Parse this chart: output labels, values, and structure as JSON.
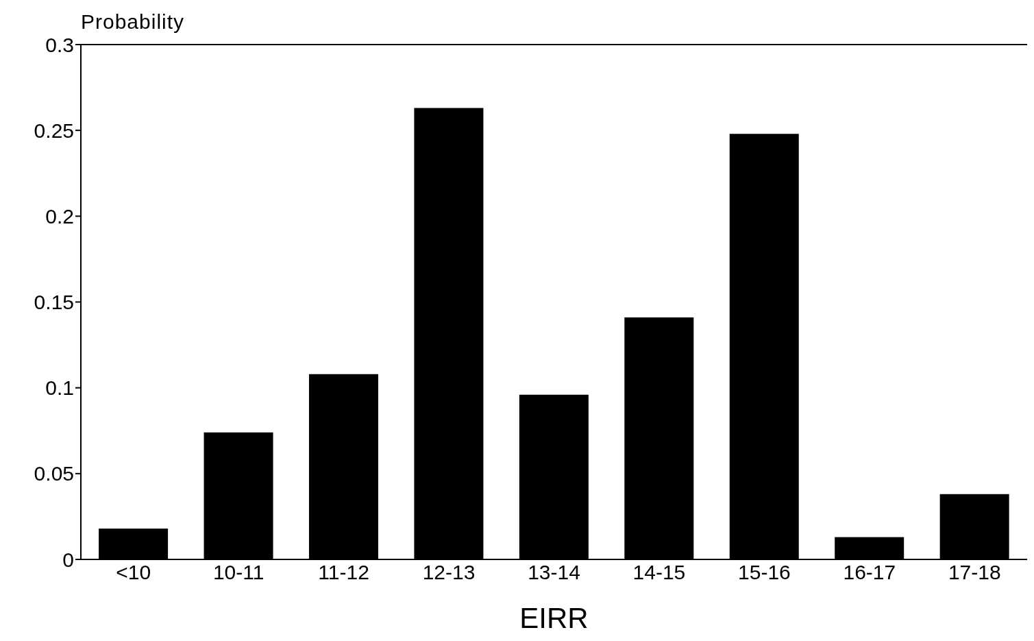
{
  "chart_data": {
    "type": "bar",
    "xlabel": "EIRR",
    "ylabel": "Probability",
    "categories": [
      "<10",
      "10-11",
      "11-12",
      "12-13",
      "13-14",
      "14-15",
      "15-16",
      "16-17",
      "17-18"
    ],
    "values": [
      0.018,
      0.074,
      0.108,
      0.263,
      0.096,
      0.141,
      0.248,
      0.013,
      0.038
    ],
    "color": "#000000",
    "ylim": [
      0,
      0.3
    ],
    "yticks": [
      0,
      0.05,
      0.1,
      0.15,
      0.2,
      0.25,
      0.3
    ],
    "grid": false,
    "legend": false
  }
}
